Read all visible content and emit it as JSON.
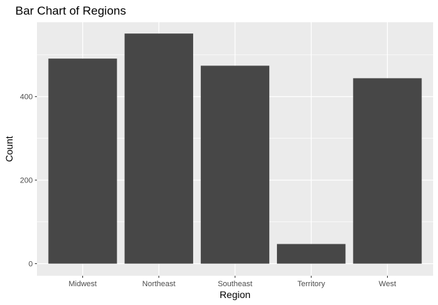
{
  "chart_data": {
    "type": "bar",
    "title": "Bar Chart of Regions",
    "xlabel": "Region",
    "ylabel": "Count",
    "categories": [
      "Midwest",
      "Northeast",
      "Southeast",
      "Territory",
      "West"
    ],
    "values": [
      491,
      551,
      474,
      47,
      444
    ],
    "ylim": [
      -29,
      578
    ],
    "yticks": [
      0,
      200,
      400
    ],
    "grid": true,
    "bar_color": "#474747",
    "panel_color": "#ebebeb",
    "gridline_color": "#ffffff"
  }
}
